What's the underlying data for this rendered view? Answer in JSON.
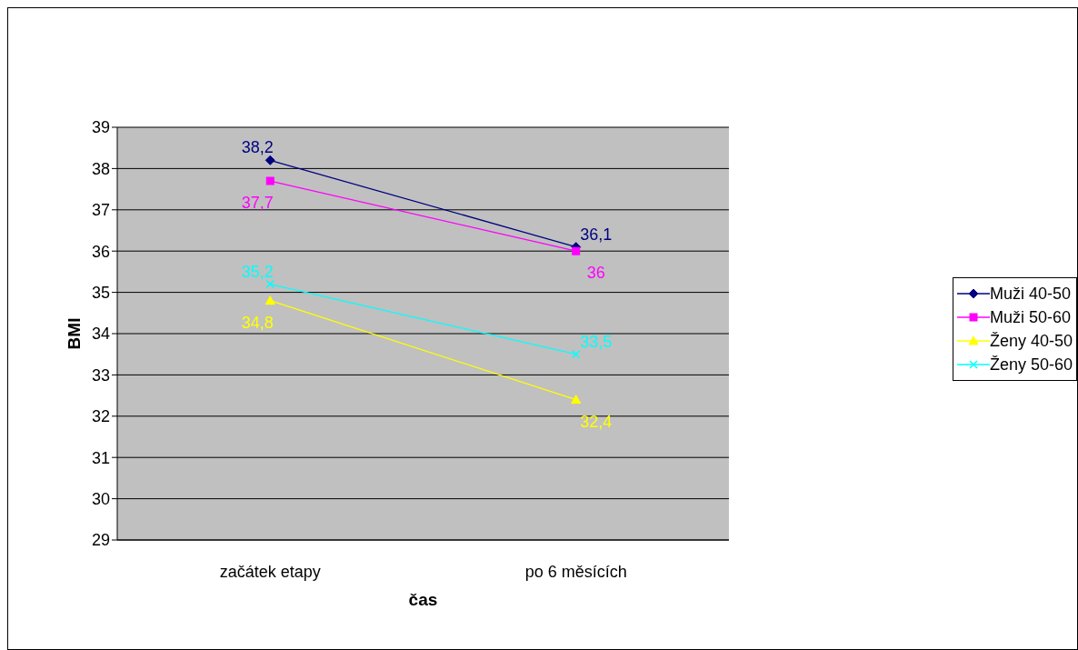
{
  "chart_data": {
    "type": "line",
    "xlabel": "čas",
    "ylabel": "BMI",
    "categories": [
      "začátek etapy",
      "po 6 měsících"
    ],
    "series": [
      {
        "name": "Muži 40-50",
        "color": "#000080",
        "marker": "diamond",
        "values": [
          38.2,
          36.1
        ],
        "value_labels": [
          "38,2",
          "36,1"
        ]
      },
      {
        "name": "Muži 50-60",
        "color": "#ff00ff",
        "marker": "square",
        "values": [
          37.7,
          36
        ],
        "value_labels": [
          "37,7",
          "36"
        ]
      },
      {
        "name": "Ženy 40-50",
        "color": "#ffff00",
        "marker": "triangle",
        "values": [
          34.8,
          32.4
        ],
        "value_labels": [
          "34,8",
          "32,4"
        ]
      },
      {
        "name": "Ženy 50-60",
        "color": "#00ffff",
        "marker": "cross",
        "values": [
          35.2,
          33.5
        ],
        "value_labels": [
          "35,2",
          "33,5"
        ]
      }
    ],
    "ylim": [
      29,
      39
    ],
    "yticks": [
      29,
      30,
      31,
      32,
      33,
      34,
      35,
      36,
      37,
      38,
      39
    ],
    "grid": "y",
    "legend": "right"
  }
}
